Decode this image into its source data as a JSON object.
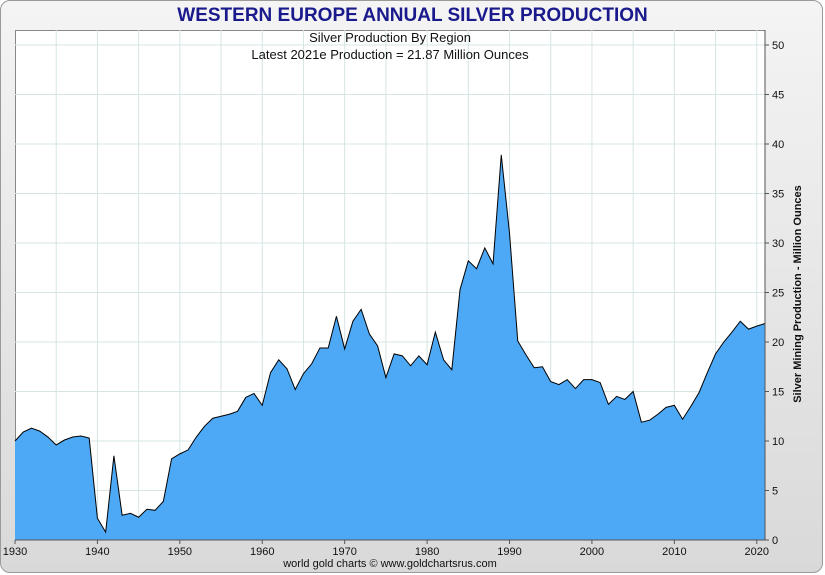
{
  "chart_data": {
    "type": "area",
    "title": "WESTERN EUROPE ANNUAL SILVER PRODUCTION",
    "subtitle": "Silver Production By Region",
    "annotation": "Latest 2021e Production = 21.87 Million Ounces",
    "ylabel": "Silver Mining Production - Million Ounces",
    "xlabel": "",
    "source": "world gold charts © www.goldchartsrus.com",
    "xlim": [
      1930,
      2021
    ],
    "ylim": [
      0,
      50
    ],
    "x_ticks": [
      "1930",
      "1940",
      "1950",
      "1960",
      "1970",
      "1980",
      "1990",
      "2000",
      "2010",
      "2020"
    ],
    "y_ticks": [
      "0",
      "5",
      "10",
      "15",
      "20",
      "25",
      "30",
      "35",
      "40",
      "45",
      "50"
    ],
    "fill_color": "#4da8f5",
    "line_color": "#000000",
    "grid": true,
    "legend": "none",
    "series": [
      {
        "name": "Western Europe",
        "x": [
          1930,
          1931,
          1932,
          1933,
          1934,
          1935,
          1936,
          1937,
          1938,
          1939,
          1940,
          1941,
          1942,
          1943,
          1944,
          1945,
          1946,
          1947,
          1948,
          1949,
          1950,
          1951,
          1952,
          1953,
          1954,
          1955,
          1956,
          1957,
          1958,
          1959,
          1960,
          1961,
          1962,
          1963,
          1964,
          1965,
          1966,
          1967,
          1968,
          1969,
          1970,
          1971,
          1972,
          1973,
          1974,
          1975,
          1976,
          1977,
          1978,
          1979,
          1980,
          1981,
          1982,
          1983,
          1984,
          1985,
          1986,
          1987,
          1988,
          1989,
          1990,
          1991,
          1992,
          1993,
          1994,
          1995,
          1996,
          1997,
          1998,
          1999,
          2000,
          2001,
          2002,
          2003,
          2004,
          2005,
          2006,
          2007,
          2008,
          2009,
          2010,
          2011,
          2012,
          2013,
          2014,
          2015,
          2016,
          2017,
          2018,
          2019,
          2020,
          2021
        ],
        "values": [
          10.0,
          10.9,
          11.3,
          11.0,
          10.4,
          9.6,
          10.1,
          10.4,
          10.5,
          10.3,
          2.2,
          0.8,
          8.5,
          2.5,
          2.7,
          2.3,
          3.1,
          3.0,
          3.9,
          8.2,
          8.7,
          9.1,
          10.4,
          11.5,
          12.3,
          12.5,
          12.7,
          13.0,
          14.4,
          14.8,
          13.6,
          16.9,
          18.2,
          17.3,
          15.2,
          16.8,
          17.8,
          19.4,
          19.4,
          22.6,
          19.3,
          22.1,
          23.3,
          20.8,
          19.6,
          16.4,
          18.8,
          18.6,
          17.6,
          18.6,
          17.7,
          21.0,
          18.2,
          17.2,
          25.3,
          28.2,
          27.4,
          29.5,
          27.9,
          38.9,
          31.0,
          20.1,
          18.7,
          17.4,
          17.5,
          16.0,
          15.7,
          16.2,
          15.3,
          16.2,
          16.2,
          15.9,
          13.7,
          14.5,
          14.2,
          15.0,
          11.9,
          12.1,
          12.7,
          13.4,
          13.6,
          12.2,
          13.5,
          14.9,
          16.9,
          18.8,
          20.0,
          21.0,
          22.1,
          21.3,
          21.6,
          21.87
        ]
      }
    ]
  }
}
